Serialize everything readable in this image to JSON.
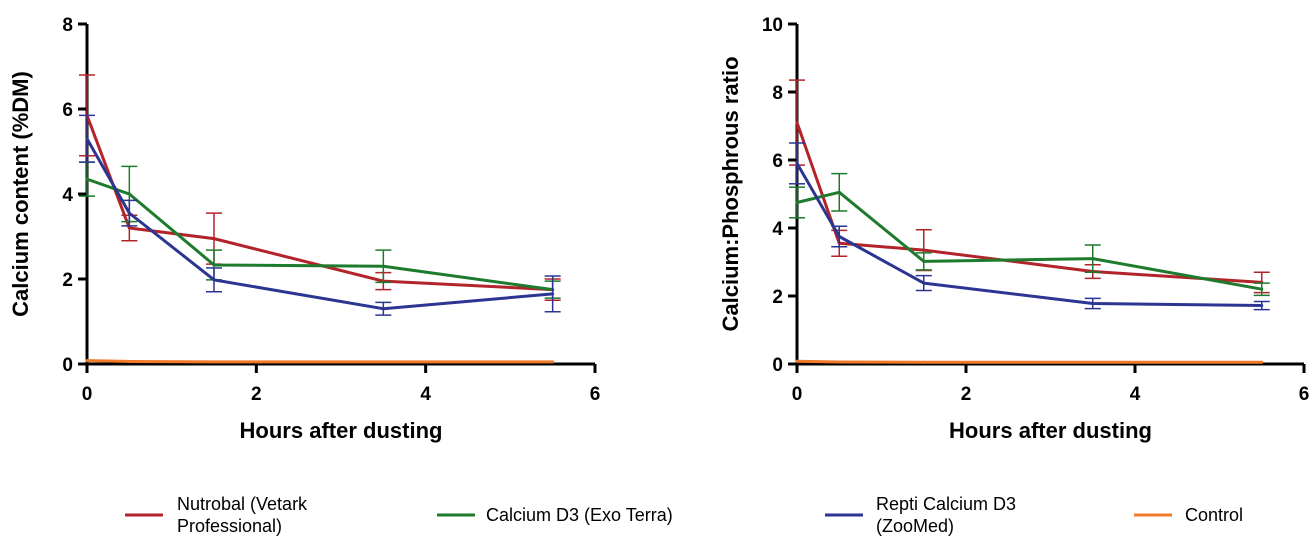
{
  "colors": {
    "nutrobal": "#B2232A",
    "calcium_d3": "#1E7B2D",
    "repti": "#2C3692",
    "control": "#F07A2A",
    "axis": "#000000"
  },
  "chart_data": [
    {
      "type": "line",
      "title": "",
      "xlabel": "Hours after dusting",
      "ylabel": "Calcium content (%DM)",
      "xlim": [
        0,
        6
      ],
      "ylim": [
        0,
        8
      ],
      "xticks": [
        "0",
        "2",
        "4",
        "6"
      ],
      "yticks": [
        "0",
        "2",
        "4",
        "6",
        "8"
      ],
      "grid": false,
      "x": [
        0,
        0.5,
        1.5,
        3.5,
        5.5
      ],
      "series": [
        {
          "name": "Nutrobal (Vetark Professional)",
          "color_key": "nutrobal",
          "values": [
            5.85,
            3.2,
            2.95,
            1.95,
            1.75
          ],
          "errors": [
            0.95,
            0.3,
            0.6,
            0.2,
            0.25
          ]
        },
        {
          "name": "Calcium D3 (Exo Terra)",
          "color_key": "calcium_d3",
          "values": [
            4.35,
            4.0,
            2.33,
            2.3,
            1.75
          ],
          "errors": [
            0.4,
            0.65,
            0.35,
            0.38,
            0.2
          ]
        },
        {
          "name": "Repti Calcium D3 (ZooMed)",
          "color_key": "repti",
          "values": [
            5.3,
            3.55,
            1.98,
            1.3,
            1.65
          ],
          "errors": [
            0.55,
            0.3,
            0.28,
            0.15,
            0.42
          ]
        },
        {
          "name": "Control",
          "color_key": "control",
          "values": [
            0.08,
            0.06,
            0.05,
            0.05,
            0.05
          ],
          "errors": [
            0,
            0,
            0,
            0,
            0
          ]
        }
      ]
    },
    {
      "type": "line",
      "title": "",
      "xlabel": "Hours after dusting",
      "ylabel": "Calcium:Phosphrous ratio",
      "xlim": [
        0,
        6
      ],
      "ylim": [
        0,
        10
      ],
      "xticks": [
        "0",
        "2",
        "4",
        "6"
      ],
      "yticks": [
        "0",
        "2",
        "4",
        "6",
        "8",
        "10"
      ],
      "grid": false,
      "x": [
        0,
        0.5,
        1.5,
        3.5,
        5.5
      ],
      "series": [
        {
          "name": "Nutrobal (Vetark Professional)",
          "color_key": "nutrobal",
          "values": [
            7.1,
            3.55,
            3.35,
            2.72,
            2.4
          ],
          "errors": [
            1.25,
            0.38,
            0.6,
            0.2,
            0.3
          ]
        },
        {
          "name": "Calcium D3 (Exo Terra)",
          "color_key": "calcium_d3",
          "values": [
            4.75,
            5.05,
            3.02,
            3.1,
            2.2
          ],
          "errors": [
            0.45,
            0.55,
            0.25,
            0.4,
            0.18
          ]
        },
        {
          "name": "Repti Calcium D3 (ZooMed)",
          "color_key": "repti",
          "values": [
            5.9,
            3.75,
            2.38,
            1.78,
            1.72
          ],
          "errors": [
            0.6,
            0.3,
            0.22,
            0.15,
            0.12
          ]
        },
        {
          "name": "Control",
          "color_key": "control",
          "values": [
            0.08,
            0.06,
            0.05,
            0.05,
            0.05
          ],
          "errors": [
            0,
            0,
            0,
            0,
            0
          ]
        }
      ]
    }
  ],
  "legend": {
    "position": "bottom",
    "items": [
      {
        "lines": [
          "Nutrobal (Vetark",
          "Professional)"
        ],
        "color_key": "nutrobal"
      },
      {
        "lines": [
          "Calcium D3 (Exo Terra)"
        ],
        "color_key": "calcium_d3"
      },
      {
        "lines": [
          "Repti Calcium D3",
          "(ZooMed)"
        ],
        "color_key": "repti"
      },
      {
        "lines": [
          "Control"
        ],
        "color_key": "control"
      }
    ]
  }
}
